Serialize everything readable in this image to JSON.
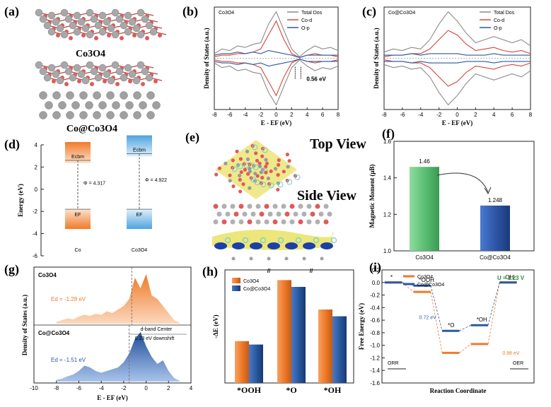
{
  "panels": {
    "a": {
      "label": "(a)",
      "top_caption": "Co3O4",
      "bottom_caption": "Co@Co3O4"
    },
    "b": {
      "label": "(b)",
      "title": "Co3O4",
      "annotation": "0.56 eV"
    },
    "c": {
      "label": "(c)",
      "title": "Co@Co3O4"
    },
    "d": {
      "label": "(d)"
    },
    "e": {
      "label": "(e)",
      "top_view": "Top View",
      "side_view": "Side View"
    },
    "f": {
      "label": "(f)"
    },
    "g": {
      "label": "(g)",
      "top_title": "Co3O4",
      "bottom_title": "Co@Co3O4",
      "ed_top": "Ed = -1.28 eV",
      "ed_bottom": "Ed = -1.51 eV",
      "center_label": "d-band Center",
      "shift_label": "0.23 eV downshift"
    },
    "h": {
      "label": "(h)"
    },
    "i": {
      "label": "(i)",
      "u_label": "U = 1.23 V",
      "orr": "ORR",
      "oer": "OER",
      "gap1": "0.72 eV",
      "gap2": "0.98 eV"
    }
  },
  "colors": {
    "orange": "#f07a2a",
    "blue": "#2a5aa0",
    "green": "#5cbf74",
    "navy": "#2d56a8",
    "red": "#d9453b",
    "gray": "#8a8a8a",
    "yellow": "#e8e05a",
    "teal": "#6fd0d6"
  },
  "chart_data": [
    {
      "panel": "b",
      "type": "line",
      "title": "Co3O4",
      "xlabel": "E - EF (eV)",
      "ylabel": "Density of States (a.u.)",
      "xlim": [
        -8,
        8
      ],
      "xticks": [
        "-8",
        "-6",
        "-4",
        "-2",
        "0",
        "2",
        "4",
        "6",
        "8"
      ],
      "legend": [
        "Total Dos",
        "Co-d",
        "O-p"
      ],
      "x": [
        -8,
        -7,
        -6,
        -5,
        -4,
        -3,
        -2,
        -1,
        0,
        1,
        2,
        3,
        4,
        5,
        6,
        7,
        8
      ],
      "series": [
        {
          "name": "Total Dos",
          "up": [
            0.3,
            0.6,
            0.5,
            0.8,
            0.7,
            0.9,
            1.0,
            2.2,
            3.0,
            1.8,
            0.6,
            0.1,
            0.5,
            0.8,
            0.6,
            0.7,
            0.5
          ],
          "down": [
            -0.3,
            -0.6,
            -0.5,
            -0.8,
            -0.7,
            -0.9,
            -1.0,
            -2.2,
            -3.0,
            -1.8,
            -0.6,
            -0.1,
            -0.5,
            -0.8,
            -0.6,
            -0.7,
            -0.5
          ]
        },
        {
          "name": "Co-d",
          "up": [
            0.1,
            0.2,
            0.2,
            0.3,
            0.3,
            0.4,
            0.6,
            1.5,
            2.4,
            1.2,
            0.3,
            0.05,
            0.2,
            0.3,
            0.2,
            0.2,
            0.1
          ],
          "down": [
            -0.1,
            -0.2,
            -0.2,
            -0.3,
            -0.3,
            -0.4,
            -0.6,
            -1.5,
            -2.4,
            -1.2,
            -0.3,
            -0.05,
            -0.2,
            -0.3,
            -0.2,
            -0.2,
            -0.1
          ]
        },
        {
          "name": "O-p",
          "up": [
            0.2,
            0.3,
            0.3,
            0.4,
            0.3,
            0.4,
            0.3,
            0.5,
            0.4,
            0.3,
            0.2,
            0.05,
            0.2,
            0.2,
            0.2,
            0.2,
            0.2
          ],
          "down": [
            -0.2,
            -0.3,
            -0.3,
            -0.4,
            -0.3,
            -0.4,
            -0.3,
            -0.5,
            -0.4,
            -0.3,
            -0.2,
            -0.05,
            -0.2,
            -0.2,
            -0.2,
            -0.2,
            -0.2
          ]
        }
      ],
      "annotation": "0.56 eV"
    },
    {
      "panel": "c",
      "type": "line",
      "title": "Co@Co3O4",
      "xlabel": "E - EF (eV)",
      "ylabel": "Density of States (a.u.)",
      "xlim": [
        -8,
        8
      ],
      "xticks": [
        "-8",
        "-6",
        "-4",
        "-2",
        "0",
        "2",
        "4",
        "6",
        "8"
      ],
      "legend": [
        "Total Dos",
        "Co-d",
        "O-p"
      ],
      "x": [
        -8,
        -7,
        -6,
        -5,
        -4,
        -3,
        -2,
        -1,
        0,
        1,
        2,
        3,
        4,
        5,
        6,
        7,
        8
      ],
      "series": [
        {
          "name": "Total Dos",
          "up": [
            0.4,
            0.6,
            0.5,
            0.7,
            0.6,
            1.2,
            2.2,
            3.0,
            2.4,
            1.6,
            1.0,
            1.2,
            1.4,
            1.2,
            1.0,
            1.2,
            0.8
          ],
          "down": [
            -0.4,
            -0.6,
            -0.5,
            -0.7,
            -0.6,
            -1.2,
            -2.2,
            -3.0,
            -2.4,
            -1.6,
            -1.0,
            -1.2,
            -1.4,
            -1.2,
            -1.0,
            -1.2,
            -0.8
          ]
        },
        {
          "name": "Co-d",
          "up": [
            0.1,
            0.2,
            0.2,
            0.3,
            0.3,
            0.6,
            1.2,
            1.8,
            1.5,
            0.9,
            0.5,
            0.6,
            0.7,
            0.5,
            0.4,
            0.5,
            0.3
          ],
          "down": [
            -0.1,
            -0.2,
            -0.2,
            -0.3,
            -0.3,
            -0.6,
            -1.2,
            -1.8,
            -1.5,
            -0.9,
            -0.5,
            -0.6,
            -0.7,
            -0.5,
            -0.4,
            -0.5,
            -0.3
          ]
        },
        {
          "name": "O-p",
          "up": [
            0.2,
            0.2,
            0.2,
            0.3,
            0.2,
            0.3,
            0.3,
            0.3,
            0.3,
            0.2,
            0.2,
            0.2,
            0.3,
            0.2,
            0.2,
            0.2,
            0.2
          ],
          "down": [
            -0.2,
            -0.2,
            -0.2,
            -0.3,
            -0.2,
            -0.3,
            -0.3,
            -0.3,
            -0.3,
            -0.2,
            -0.2,
            -0.2,
            -0.3,
            -0.2,
            -0.2,
            -0.2,
            -0.2
          ]
        }
      ]
    },
    {
      "panel": "d",
      "type": "bar",
      "ylabel": "Energy (eV)",
      "ylim": [
        -6,
        4
      ],
      "yticks": [
        "4",
        "2",
        "0",
        "-2",
        "-4",
        "-6"
      ],
      "categories": [
        "Co",
        "Co3O4"
      ],
      "ecbm_label": "Ecbm",
      "ef_label": "EF",
      "ecbm": [
        2.6,
        3.2
      ],
      "ef": [
        -1.8,
        -1.8
      ],
      "phi_labels": [
        "Φ = 4.317",
        "Φ = 4.922"
      ]
    },
    {
      "panel": "f",
      "type": "bar",
      "ylabel": "Magnetic Moment (μB)",
      "ylim": [
        1.0,
        1.6
      ],
      "yticks": [
        "1.6",
        "1.4",
        "1.2",
        "1.0"
      ],
      "categories": [
        "Co3O4",
        "Co@Co3O4"
      ],
      "values": [
        1.46,
        1.248
      ],
      "value_labels": [
        "1.46",
        "1.248"
      ]
    },
    {
      "panel": "g",
      "type": "area",
      "xlabel": "E - EF (eV)",
      "ylabel": "Density of States (a.u.)",
      "xlim": [
        -10,
        4
      ],
      "xticks": [
        "-10",
        "-8",
        "-6",
        "-4",
        "-2",
        "0",
        "2",
        "4"
      ],
      "x": [
        -8,
        -7.5,
        -7,
        -6.5,
        -6,
        -5.5,
        -5,
        -4.5,
        -4,
        -3.5,
        -3,
        -2.5,
        -2,
        -1.5,
        -1,
        -0.5,
        0,
        0.5,
        1,
        1.5,
        2,
        2.5,
        3
      ],
      "series": [
        {
          "name": "Co3O4",
          "values": [
            0.05,
            0.1,
            0.15,
            0.12,
            0.2,
            0.25,
            0.22,
            0.28,
            0.25,
            0.35,
            0.3,
            0.4,
            0.5,
            0.7,
            1.3,
            1.0,
            1.4,
            0.8,
            0.7,
            0.5,
            0.3,
            0.1,
            0.02
          ]
        },
        {
          "name": "Co@Co3O4",
          "values": [
            0.05,
            0.08,
            0.15,
            0.2,
            0.3,
            0.45,
            0.4,
            0.3,
            0.25,
            0.3,
            0.35,
            0.4,
            0.55,
            0.8,
            1.2,
            1.4,
            1.0,
            0.7,
            0.5,
            0.6,
            0.3,
            0.1,
            0.02
          ]
        }
      ],
      "d_band_center": [
        -1.28,
        -1.51
      ]
    },
    {
      "panel": "h",
      "type": "bar",
      "ylabel": "-ΔE (eV)",
      "categories": [
        "*OOH",
        "*O",
        "*OH"
      ],
      "series": [
        {
          "name": "Co3O4",
          "values": [
            1.85,
            4.55,
            3.25
          ]
        },
        {
          "name": "Co@Co3O4",
          "values": [
            1.7,
            4.25,
            2.95
          ]
        }
      ]
    },
    {
      "panel": "i",
      "type": "line",
      "xlabel": "Reaction Coordinate",
      "ylabel": "Free Energy (eV)",
      "ylim": [
        -1.6,
        0.2
      ],
      "yticks": [
        "0.2",
        "0.0",
        "-0.2",
        "-0.4",
        "-0.6",
        "-0.8",
        "-1.0",
        "-1.2",
        "-1.4",
        "-1.6"
      ],
      "categories": [
        "*",
        "*OOH",
        "*O",
        "*OH",
        "OH-"
      ],
      "series": [
        {
          "name": "Co3O4",
          "values": [
            0.0,
            -0.15,
            -1.12,
            -0.98,
            0.0
          ]
        },
        {
          "name": "Co@Co3O4",
          "values": [
            0.0,
            -0.05,
            -0.77,
            -0.68,
            0.0
          ]
        }
      ]
    }
  ]
}
